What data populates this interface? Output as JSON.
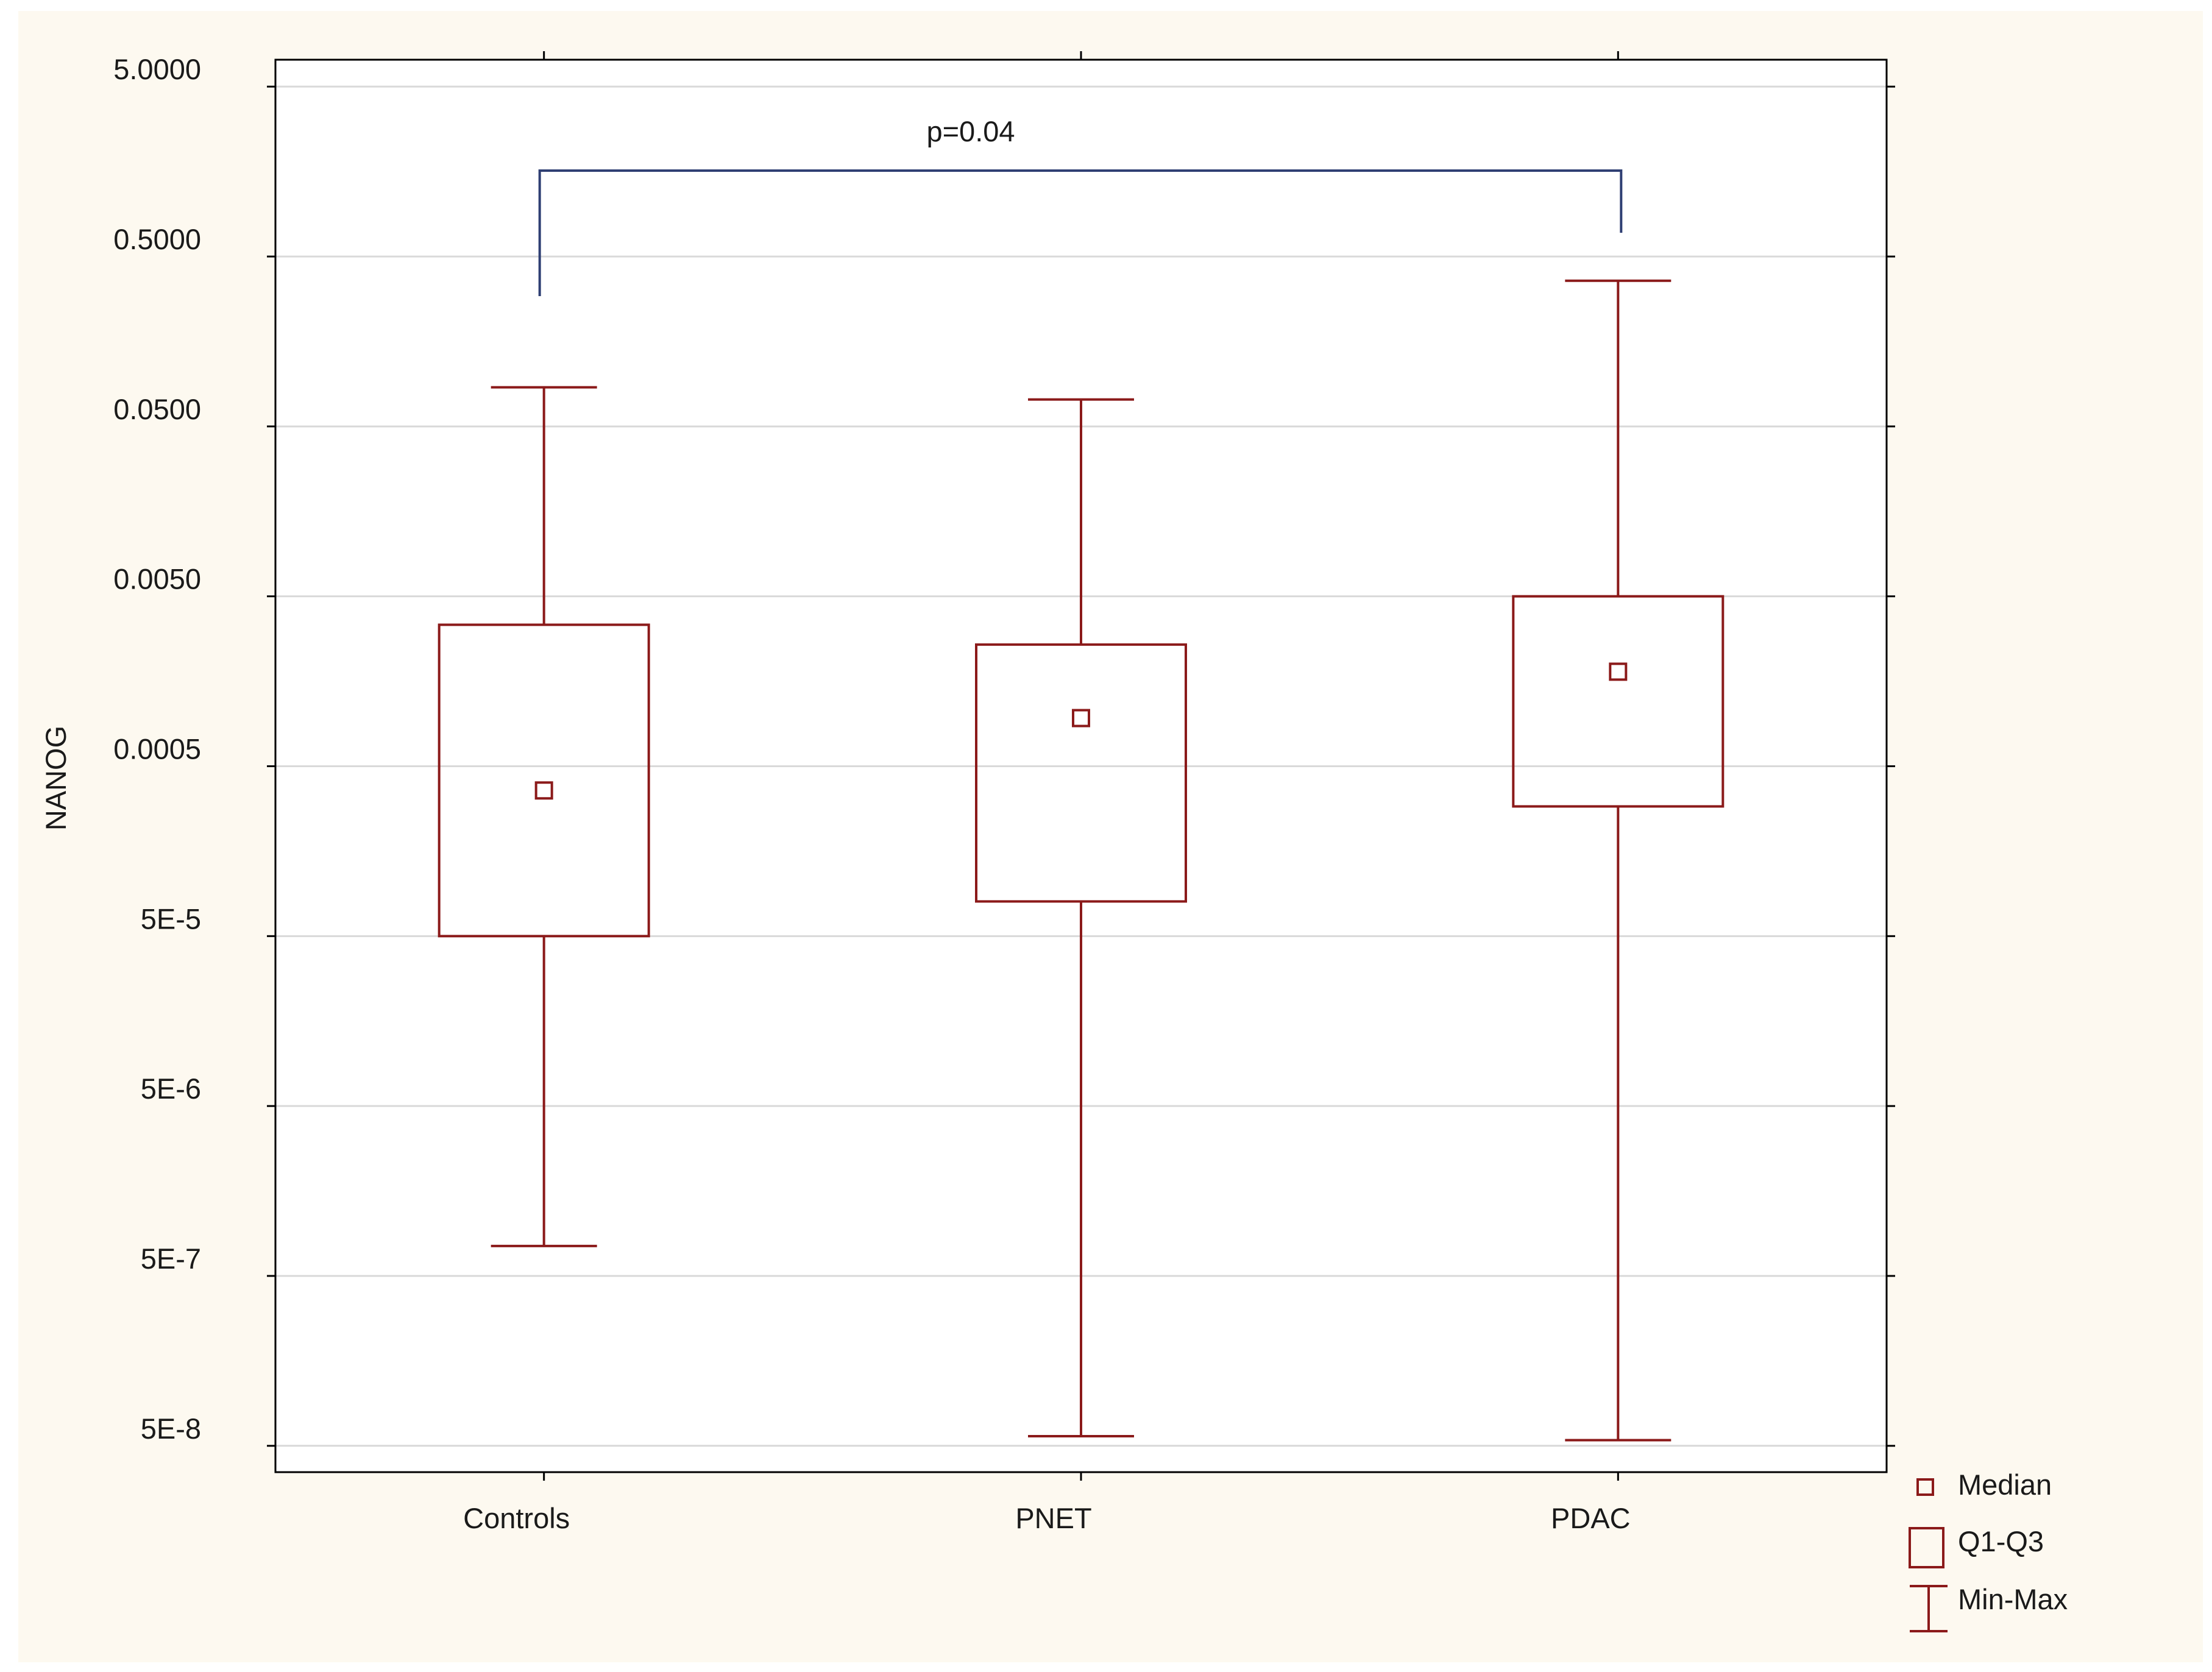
{
  "chart_data": {
    "type": "boxplot",
    "ylabel": "NANOG",
    "yscale": "log",
    "ylim": [
      3.5e-08,
      7.2
    ],
    "y_ticks": [
      {
        "value": 5,
        "label": "5.0000"
      },
      {
        "value": 0.5,
        "label": "0.5000"
      },
      {
        "value": 0.05,
        "label": "0.0500"
      },
      {
        "value": 0.005,
        "label": "0.0050"
      },
      {
        "value": 0.0005,
        "label": "0.0005"
      },
      {
        "value": 5e-05,
        "label": "5E-5"
      },
      {
        "value": 5e-06,
        "label": "5E-6"
      },
      {
        "value": 5e-07,
        "label": "5E-7"
      },
      {
        "value": 5e-08,
        "label": "5E-8"
      }
    ],
    "grid": true,
    "categories": [
      "Controls",
      "PNET",
      "PDAC"
    ],
    "boxes": [
      {
        "category": "Controls",
        "min": 7.5e-07,
        "q1": 5e-05,
        "median": 0.00036,
        "q3": 0.0034,
        "max": 0.085
      },
      {
        "category": "PNET",
        "min": 5.7e-08,
        "q1": 8e-05,
        "median": 0.00096,
        "q3": 0.0026,
        "max": 0.072
      },
      {
        "category": "PDAC",
        "min": 5.4e-08,
        "q1": 0.00029,
        "median": 0.0018,
        "q3": 0.005,
        "max": 0.36
      }
    ],
    "legend": {
      "position": "bottom-right",
      "items": [
        {
          "label": "Median",
          "symbol": "small-square"
        },
        {
          "label": "Q1-Q3",
          "symbol": "box"
        },
        {
          "label": "Min-Max",
          "symbol": "whisker"
        }
      ]
    },
    "annotations": [
      {
        "text": "p=0.04",
        "from": "Controls",
        "to": "PDAC"
      }
    ],
    "colors": {
      "box": "#8b1a1a",
      "bracket": "#2f3f73",
      "grid": "#d9d9d9",
      "axis": "#000000",
      "page_background": "#fdf9f0",
      "plot_background": "#ffffff"
    }
  }
}
